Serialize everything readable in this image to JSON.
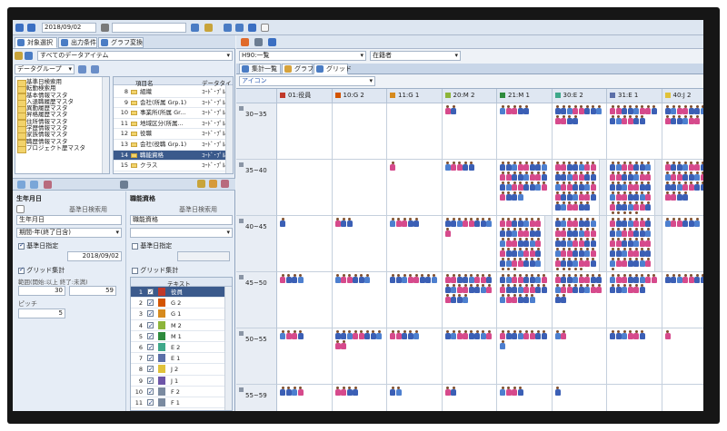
{
  "toolbar": {
    "date": "2018/09/02",
    "select_all_data": "すべてのデータアイテム",
    "data_group_label": "データグループ"
  },
  "left_tabs": [
    "対象選択",
    "出力条件",
    "グラフ変換"
  ],
  "left_tree": [
    "基準日検索用",
    "転勤検索用",
    "基本情報マスタ",
    "入退職履歴マスタ",
    "異動履歴マスタ",
    "昇格履歴マスタ",
    "住所情報マスタ",
    "学歴情報マスタ",
    "家族情報マスタ",
    "職歴情報マスタ",
    "プロジェクト歴マスタ"
  ],
  "item_table": {
    "header_name": "項目名",
    "header_type": "データタイ",
    "rows": [
      {
        "no": "8",
        "name": "組織",
        "type": "ｺｰﾄﾞ･ﾌﾟﾙﾀﾞ"
      },
      {
        "no": "9",
        "name": "会社(所属 Grp.1)",
        "type": "ｺｰﾄﾞ･ﾌﾟﾙﾀﾞ"
      },
      {
        "no": "10",
        "name": "事業所(所属 Gr...",
        "type": "ｺｰﾄﾞ･ﾌﾟﾙﾀﾞ"
      },
      {
        "no": "11",
        "name": "地域区分(所属...",
        "type": "ｺｰﾄﾞ･ﾌﾟﾙﾀﾞ"
      },
      {
        "no": "12",
        "name": "役職",
        "type": "ｺｰﾄﾞ･ﾌﾟﾙﾀﾞ"
      },
      {
        "no": "13",
        "name": "会社(役職 Grp.1)",
        "type": "ｺｰﾄﾞ･ﾌﾟﾙﾀﾞ"
      },
      {
        "no": "14",
        "name": "職能資格",
        "type": "ｺｰﾄﾞ･ﾌﾟﾙﾀﾞ"
      },
      {
        "no": "15",
        "name": "クラス",
        "type": "ｺｰﾄﾞ･ﾌﾟﾙﾀﾞ"
      }
    ]
  },
  "birth": {
    "title": "生年月日",
    "base_date_label": "基準日検索用",
    "field": "生年月日",
    "period": "期間-年(終了日含)",
    "base_date_chk": "基準日指定",
    "base_date": "2018/09/02",
    "grid_chk": "グリッド集計",
    "range_label": "範囲(開始:以上 終了:未満)",
    "range_from": "30",
    "range_to": "59",
    "pitch_label": "ピッチ",
    "pitch": "5"
  },
  "grade": {
    "title": "職能資格",
    "base_date_label": "基準日検索用",
    "field": "職能資格",
    "base_date_chk": "基準日指定",
    "grid_chk": "グリッド集計",
    "text_header": "テキスト",
    "rows": [
      {
        "no": "1",
        "text": "役員",
        "color": "#c0392b"
      },
      {
        "no": "2",
        "text": "G 2",
        "color": "#d35400"
      },
      {
        "no": "3",
        "text": "G 1",
        "color": "#d68a1e"
      },
      {
        "no": "4",
        "text": "M 2",
        "color": "#8db53a"
      },
      {
        "no": "5",
        "text": "M 1",
        "color": "#2e8b3d"
      },
      {
        "no": "6",
        "text": "E 2",
        "color": "#3ea88a"
      },
      {
        "no": "7",
        "text": "E 1",
        "color": "#5b6fa8"
      },
      {
        "no": "8",
        "text": "J 2",
        "color": "#e0c23a"
      },
      {
        "no": "9",
        "text": "J 1",
        "color": "#6d55a8"
      },
      {
        "no": "10",
        "text": "F 2",
        "color": "#7a8aa0"
      },
      {
        "no": "11",
        "text": "F 1",
        "color": "#7a8aa0"
      }
    ]
  },
  "right_top": {
    "view_select": "H90:一覧",
    "status_select": "在籍者",
    "tabs": [
      "集計一覧",
      "グラフ",
      "グリッド"
    ],
    "display_select": "アイコン"
  },
  "grid": {
    "columns": [
      {
        "label": "01:役員",
        "color": "#c0392b"
      },
      {
        "label": "10:G 2",
        "color": "#d35400"
      },
      {
        "label": "11:G 1",
        "color": "#d68a1e"
      },
      {
        "label": "20:M 2",
        "color": "#8db53a"
      },
      {
        "label": "21:M 1",
        "color": "#2e8b3d"
      },
      {
        "label": "30:E 2",
        "color": "#3ea88a"
      },
      {
        "label": "31:E 1",
        "color": "#5b6fa8"
      },
      {
        "label": "40:J 2",
        "color": "#e0c23a"
      }
    ],
    "rows": [
      "30~35",
      "35~40",
      "40~45",
      "45~50",
      "50~55",
      "55~59"
    ],
    "counts": [
      [
        0,
        0,
        0,
        2,
        5,
        12,
        14,
        14
      ],
      [
        0,
        0,
        1,
        5,
        28,
        34,
        40,
        28
      ],
      [
        1,
        3,
        5,
        9,
        38,
        40,
        36,
        6
      ],
      [
        4,
        6,
        8,
        20,
        22,
        18,
        14,
        7
      ],
      [
        4,
        10,
        5,
        8,
        9,
        2,
        6,
        1
      ],
      [
        4,
        4,
        2,
        2,
        4,
        1,
        0,
        0
      ]
    ]
  }
}
